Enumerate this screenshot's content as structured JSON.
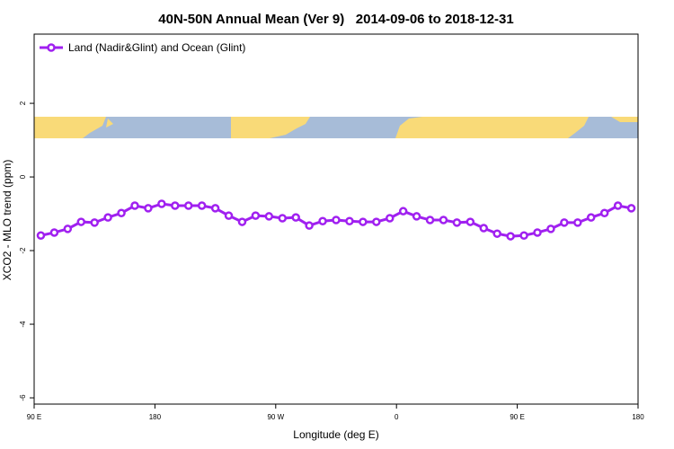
{
  "chart_data": {
    "type": "line",
    "title": "40N-50N Annual Mean (Ver 9)   2014-09-06 to 2018-12-31",
    "xlabel": "Longitude (deg E)",
    "ylabel": "XCO2 - MLO trend (ppm)",
    "xlim": [
      90,
      540
    ],
    "ylim": [
      -6.17,
      3.88
    ],
    "xticks": [
      {
        "value": 90,
        "label": "90 E"
      },
      180,
      {
        "value": 270,
        "label": "90 W"
      },
      {
        "value": 360,
        "label": "0"
      },
      {
        "value": 450,
        "label": "90 E"
      },
      {
        "value": 540,
        "label": "180"
      }
    ],
    "yticks": [
      -6,
      -4,
      -2,
      0,
      2
    ],
    "legend": "top-left",
    "series": [
      {
        "name": "Land (Nadir&Glint) and Ocean (Glint)",
        "color": "#a020f0",
        "x": [
          95,
          105,
          115,
          125,
          135,
          145,
          155,
          165,
          175,
          185,
          195,
          205,
          215,
          225,
          235,
          245,
          255,
          265,
          275,
          285,
          295,
          305,
          315,
          325,
          335,
          345,
          355,
          365,
          375,
          385,
          395,
          405,
          415,
          425,
          435,
          445,
          455,
          465,
          475,
          485,
          495,
          505,
          515,
          525,
          535
        ],
        "values": [
          -1.59,
          -1.51,
          -1.41,
          -1.22,
          -1.24,
          -1.1,
          -0.98,
          -0.78,
          -0.85,
          -0.73,
          -0.78,
          -0.78,
          -0.78,
          -0.85,
          -1.05,
          -1.22,
          -1.05,
          -1.07,
          -1.12,
          -1.1,
          -1.32,
          -1.2,
          -1.17,
          -1.2,
          -1.22,
          -1.22,
          -1.12,
          -0.93,
          -1.07,
          -1.17,
          -1.17,
          -1.24,
          -1.22,
          -1.39,
          -1.54,
          -1.61,
          -1.59,
          -1.51,
          -1.41,
          -1.24,
          -1.24,
          -1.1,
          -0.98,
          -0.78,
          -0.85
        ]
      }
    ]
  }
}
